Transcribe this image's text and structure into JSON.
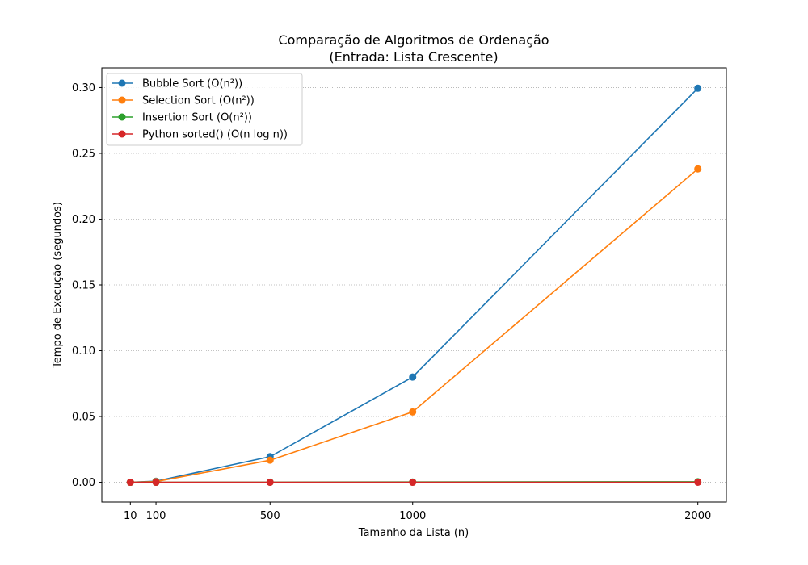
{
  "chart_data": {
    "type": "line",
    "title": "Comparação de Algoritmos de Ordenação",
    "subtitle": "(Entrada: Lista Crescente)",
    "xlabel": "Tamanho da Lista (n)",
    "ylabel": "Tempo de Execução (segundos)",
    "x": [
      10,
      100,
      500,
      1000,
      2000
    ],
    "x_ticks": [
      10,
      100,
      500,
      1000,
      2000
    ],
    "x_tick_labels": [
      "10",
      "100",
      "500",
      "1000",
      "2000"
    ],
    "xlim": [
      -90,
      2100
    ],
    "y_ticks": [
      0.0,
      0.05,
      0.1,
      0.15,
      0.2,
      0.25,
      0.3
    ],
    "y_tick_labels": [
      "0.00",
      "0.05",
      "0.10",
      "0.15",
      "0.20",
      "0.25",
      "0.30"
    ],
    "ylim": [
      -0.015,
      0.315
    ],
    "grid": {
      "y": true,
      "x": false,
      "style": "dotted"
    },
    "legend_position": "top-left",
    "series": [
      {
        "name": "Bubble Sort (O(n²))",
        "color": "#1f77b4",
        "values": [
          2e-05,
          0.0008,
          0.0195,
          0.08,
          0.2995
        ]
      },
      {
        "name": "Selection Sort (O(n²))",
        "color": "#ff7f0e",
        "values": [
          2e-05,
          0.0005,
          0.0168,
          0.0535,
          0.2382
        ]
      },
      {
        "name": "Insertion Sort (O(n²))",
        "color": "#2ca02c",
        "values": [
          3e-06,
          2e-05,
          0.0001,
          0.0002,
          0.0004
        ]
      },
      {
        "name": "Python sorted() (O(n log n))",
        "color": "#d62728",
        "values": [
          1e-06,
          3e-06,
          1e-05,
          2e-05,
          4e-05
        ]
      }
    ]
  }
}
